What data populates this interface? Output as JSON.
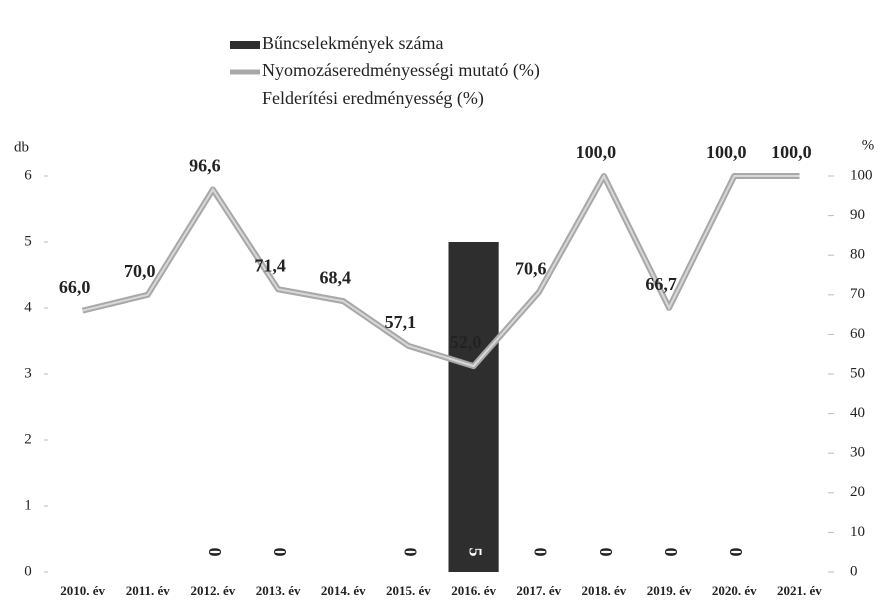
{
  "chart_data": {
    "type": "bar-line",
    "ylabel": "db",
    "y2label": "%",
    "categories": [
      "2010. év",
      "2011. év",
      "2012. év",
      "2013. év",
      "2014. év",
      "2015. év",
      "2016. év",
      "2017. év",
      "2018. év",
      "2019. év",
      "2020. év",
      "2021. év"
    ],
    "series": [
      {
        "name": "Bűncselekmények száma",
        "type": "bar",
        "color": "#2e2e2e",
        "axis": "y",
        "values": [
          null,
          null,
          0,
          0,
          null,
          0,
          5,
          0,
          0,
          0,
          0,
          null
        ]
      },
      {
        "name": "Nyomozáseredményességi mutató (%)",
        "type": "line",
        "color": "#a8a8a8",
        "axis": "y2",
        "values": [
          66.0,
          70.0,
          96.6,
          71.4,
          68.4,
          57.1,
          52.0,
          70.6,
          100.0,
          66.7,
          100.0,
          100.0
        ],
        "value_labels": [
          "66,0",
          "70,0",
          "96,6",
          "71,4",
          "68,4",
          "57,1",
          "52,0",
          "70,6",
          "100,0",
          "66,7",
          "100,0",
          "100,0"
        ]
      },
      {
        "name": "Felderítési eredményesség (%)",
        "type": "line",
        "color": "#ffffff",
        "axis": "y2",
        "values": [
          null,
          null,
          null,
          null,
          null,
          null,
          null,
          null,
          null,
          null,
          null,
          null
        ]
      }
    ],
    "ylim": [
      0,
      6
    ],
    "yticks": [
      0,
      1,
      2,
      3,
      4,
      5,
      6
    ],
    "y2lim": [
      0,
      100
    ],
    "y2ticks": [
      0,
      10,
      20,
      30,
      40,
      50,
      60,
      70,
      80,
      90,
      100
    ]
  }
}
